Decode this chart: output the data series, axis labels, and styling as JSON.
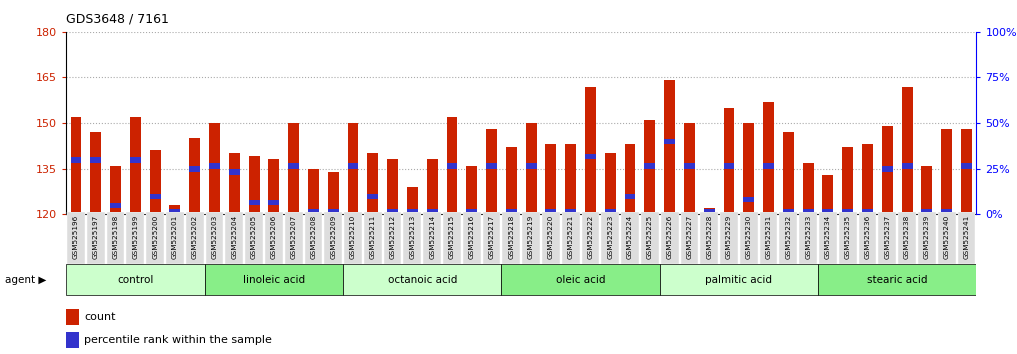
{
  "title": "GDS3648 / 7161",
  "samples": [
    "GSM525196",
    "GSM525197",
    "GSM525198",
    "GSM525199",
    "GSM525200",
    "GSM525201",
    "GSM525202",
    "GSM525203",
    "GSM525204",
    "GSM525205",
    "GSM525206",
    "GSM525207",
    "GSM525208",
    "GSM525209",
    "GSM525210",
    "GSM525211",
    "GSM525212",
    "GSM525213",
    "GSM525214",
    "GSM525215",
    "GSM525216",
    "GSM525217",
    "GSM525218",
    "GSM525219",
    "GSM525220",
    "GSM525221",
    "GSM525222",
    "GSM525223",
    "GSM525224",
    "GSM525225",
    "GSM525226",
    "GSM525227",
    "GSM525228",
    "GSM525229",
    "GSM525230",
    "GSM525231",
    "GSM525232",
    "GSM525233",
    "GSM525234",
    "GSM525235",
    "GSM525236",
    "GSM525237",
    "GSM525238",
    "GSM525239",
    "GSM525240",
    "GSM525241"
  ],
  "count_values": [
    152,
    147,
    136,
    152,
    141,
    123,
    145,
    150,
    140,
    139,
    138,
    150,
    135,
    134,
    150,
    140,
    138,
    129,
    138,
    152,
    136,
    148,
    142,
    150,
    143,
    143,
    162,
    140,
    143,
    151,
    164,
    150,
    122,
    155,
    150,
    157,
    147,
    137,
    133,
    142,
    143,
    149,
    162,
    136,
    148,
    148
  ],
  "percentile_values": [
    137,
    137,
    122,
    137,
    125,
    120,
    134,
    135,
    133,
    123,
    123,
    135,
    120,
    120,
    135,
    125,
    120,
    120,
    120,
    135,
    120,
    135,
    120,
    135,
    120,
    120,
    138,
    120,
    125,
    135,
    143,
    135,
    120,
    135,
    124,
    135,
    120,
    120,
    120,
    120,
    120,
    134,
    135,
    120,
    120,
    135
  ],
  "groups": [
    {
      "name": "control",
      "start": 0,
      "end": 7,
      "color": "#ccffcc"
    },
    {
      "name": "linoleic acid",
      "start": 7,
      "end": 14,
      "color": "#88ee88"
    },
    {
      "name": "octanoic acid",
      "start": 14,
      "end": 22,
      "color": "#ccffcc"
    },
    {
      "name": "oleic acid",
      "start": 22,
      "end": 30,
      "color": "#88ee88"
    },
    {
      "name": "palmitic acid",
      "start": 30,
      "end": 38,
      "color": "#ccffcc"
    },
    {
      "name": "stearic acid",
      "start": 38,
      "end": 46,
      "color": "#88ee88"
    }
  ],
  "ylim_left": [
    120,
    180
  ],
  "yticks_left": [
    120,
    135,
    150,
    165,
    180
  ],
  "yticks_right": [
    0,
    25,
    50,
    75,
    100
  ],
  "bar_color": "#cc2200",
  "percentile_color": "#3333cc",
  "bg_color": "#ffffff",
  "plot_bg": "#ffffff",
  "tick_bg": "#dddddd",
  "grid_color": "#aaaaaa"
}
